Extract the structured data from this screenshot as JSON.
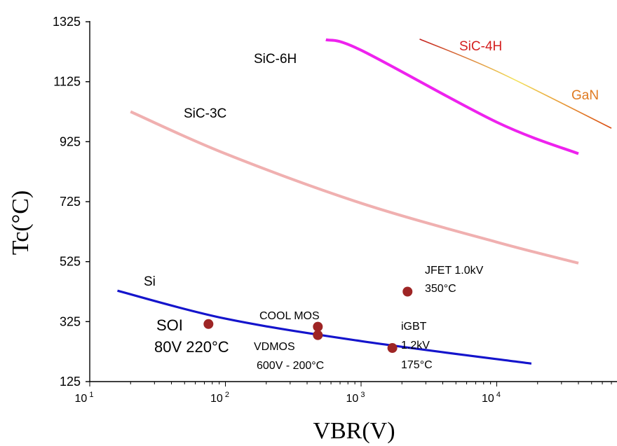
{
  "chart_data": {
    "type": "line",
    "xlabel": "VBR(V)",
    "ylabel": "Tc(°C)",
    "xscale": "log",
    "xlim": [
      10,
      70000
    ],
    "ylim": [
      125,
      1325
    ],
    "yticks": [
      125,
      325,
      525,
      725,
      925,
      1125,
      1325
    ],
    "xticks": [
      {
        "base": "10",
        "exp": "1",
        "value": 10
      },
      {
        "base": "10",
        "exp": "2",
        "value": 100
      },
      {
        "base": "10",
        "exp": "3",
        "value": 1000
      },
      {
        "base": "10",
        "exp": "4",
        "value": 10000
      }
    ],
    "grid": false,
    "series": [
      {
        "name": "Si",
        "color": "#1414cc",
        "x": [
          16,
          100,
          1000,
          18000
        ],
        "y": [
          428,
          335,
          260,
          185
        ]
      },
      {
        "name": "SiC-3C",
        "color": "#f0b0b0",
        "x": [
          20,
          100,
          1000,
          10000,
          40000
        ],
        "y": [
          1025,
          885,
          720,
          590,
          520
        ]
      },
      {
        "name": "SiC-6H",
        "color": "#ee22ee",
        "x": [
          550,
          1000,
          10000,
          40000
        ],
        "y": [
          1265,
          1230,
          990,
          885
        ]
      },
      {
        "name": "SiC-4H",
        "color": "#cc2222",
        "x": [
          2700,
          10000,
          70000
        ],
        "y": [
          1267,
          1160,
          970
        ]
      },
      {
        "name": "GaN",
        "color": "#e07a20",
        "x": [],
        "y": []
      }
    ],
    "points": [
      {
        "x": 75,
        "y": 317,
        "color": "#9e2525",
        "labels": [
          "SOI",
          "80V 220°C"
        ]
      },
      {
        "x": 480,
        "y": 308,
        "color": "#9e2525",
        "labels": [
          "COOL MOS"
        ]
      },
      {
        "x": 480,
        "y": 280,
        "color": "#9e2525",
        "labels": [
          "VDMOS",
          "600V - 200°C"
        ]
      },
      {
        "x": 2200,
        "y": 425,
        "color": "#9e2525",
        "labels": [
          "JFET 1.0kV",
          "350°C"
        ]
      },
      {
        "x": 1700,
        "y": 237,
        "color": "#9e2525",
        "labels": [
          "iGBT",
          "1.2kV",
          "175°C"
        ]
      }
    ]
  }
}
